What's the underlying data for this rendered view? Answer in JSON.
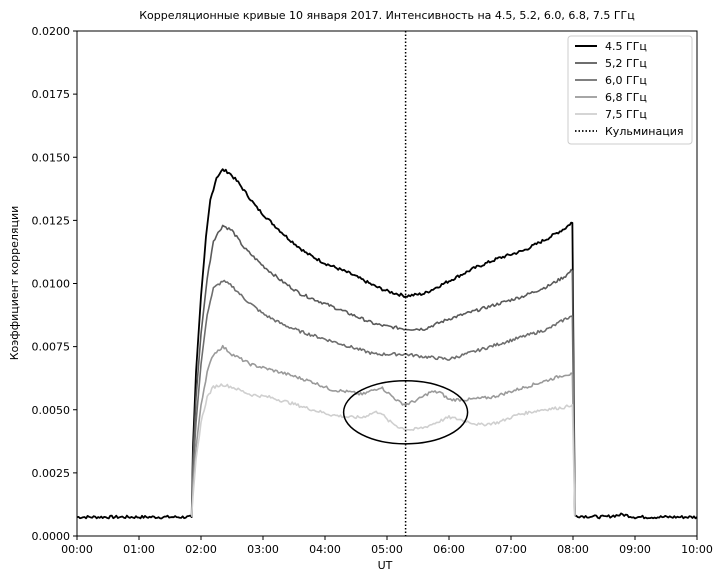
{
  "chart_data": {
    "type": "line",
    "title": "Корреляционные кривые 10 января 2017. Интенсивность на 4.5, 5.2, 6.0, 6.8, 7.5 ГГц",
    "xlabel": "UT",
    "ylabel": "Коэффициент корреляции",
    "xlim": [
      0,
      10
    ],
    "ylim": [
      0,
      0.02
    ],
    "x_ticks": [
      "00:00",
      "01:00",
      "02:00",
      "03:00",
      "04:00",
      "05:00",
      "06:00",
      "07:00",
      "08:00",
      "09:00",
      "10:00"
    ],
    "y_ticks": [
      "0.0000",
      "0.0025",
      "0.0050",
      "0.0075",
      "0.0100",
      "0.0125",
      "0.0150",
      "0.0175",
      "0.0200"
    ],
    "grid": false,
    "legend_position": "top-right",
    "series": [
      {
        "name": "4.5 ГГц",
        "color": "#000000",
        "x": [
          0,
          1.0,
          1.85,
          1.87,
          1.92,
          2.0,
          2.08,
          2.15,
          2.25,
          2.35,
          2.45,
          2.6,
          2.75,
          2.9,
          3.1,
          3.4,
          3.7,
          4.0,
          4.4,
          4.8,
          5.0,
          5.3,
          5.6,
          6.0,
          6.4,
          6.8,
          7.2,
          7.6,
          7.88,
          7.97,
          7.99,
          8.03,
          8.5,
          8.8,
          9.0,
          10.0
        ],
        "y": [
          0.00075,
          0.00075,
          0.00075,
          0.0035,
          0.0065,
          0.0095,
          0.0118,
          0.0133,
          0.0142,
          0.0145,
          0.0144,
          0.014,
          0.0135,
          0.013,
          0.0125,
          0.0118,
          0.0112,
          0.0108,
          0.0104,
          0.0099,
          0.0097,
          0.0095,
          0.0096,
          0.0101,
          0.0106,
          0.011,
          0.0113,
          0.0118,
          0.0122,
          0.0124,
          0.0124,
          0.0008,
          0.00075,
          0.00085,
          0.00075,
          0.00075
        ]
      },
      {
        "name": "5,2 ГГц",
        "color": "#5a5a5a",
        "x": [
          1.85,
          1.87,
          1.92,
          2.0,
          2.1,
          2.2,
          2.35,
          2.5,
          2.7,
          3.0,
          3.3,
          3.6,
          4.0,
          4.4,
          4.8,
          5.0,
          5.3,
          5.6,
          6.0,
          6.4,
          6.8,
          7.2,
          7.6,
          7.88,
          7.97,
          7.99,
          8.03
        ],
        "y": [
          0.00075,
          0.003,
          0.0055,
          0.008,
          0.0102,
          0.0117,
          0.0123,
          0.0121,
          0.0114,
          0.0107,
          0.0101,
          0.0096,
          0.0092,
          0.0088,
          0.0084,
          0.0083,
          0.0082,
          0.0082,
          0.0086,
          0.0089,
          0.0092,
          0.0095,
          0.0099,
          0.0103,
          0.0105,
          0.0105,
          0.0008
        ]
      },
      {
        "name": "6,0 ГГц",
        "color": "#6e6e6e",
        "x": [
          1.85,
          1.87,
          1.92,
          2.0,
          2.1,
          2.2,
          2.35,
          2.5,
          2.7,
          3.0,
          3.3,
          3.6,
          4.0,
          4.4,
          4.8,
          5.0,
          5.3,
          5.6,
          6.0,
          6.4,
          6.8,
          7.2,
          7.6,
          7.88,
          7.97,
          7.99,
          8.03
        ],
        "y": [
          0.00075,
          0.0025,
          0.0045,
          0.0068,
          0.0088,
          0.0098,
          0.0101,
          0.0099,
          0.0094,
          0.0088,
          0.0084,
          0.0081,
          0.0078,
          0.0075,
          0.0072,
          0.0072,
          0.0072,
          0.0071,
          0.007,
          0.0073,
          0.0076,
          0.0079,
          0.0082,
          0.0086,
          0.0087,
          0.0087,
          0.0008
        ]
      },
      {
        "name": "6,8 ГГц",
        "color": "#9a9a9a",
        "x": [
          1.85,
          1.87,
          1.92,
          2.0,
          2.1,
          2.2,
          2.35,
          2.5,
          2.8,
          3.1,
          3.4,
          3.8,
          4.1,
          4.4,
          4.6,
          4.8,
          4.9,
          5.0,
          5.2,
          5.3,
          5.5,
          5.7,
          5.85,
          6.0,
          6.3,
          6.7,
          7.1,
          7.5,
          7.88,
          7.97,
          7.99,
          8.03
        ],
        "y": [
          0.00075,
          0.002,
          0.0035,
          0.0052,
          0.0065,
          0.0072,
          0.0075,
          0.0072,
          0.0068,
          0.0066,
          0.0064,
          0.0061,
          0.0058,
          0.0057,
          0.0056,
          0.0058,
          0.0059,
          0.0057,
          0.0053,
          0.0052,
          0.0054,
          0.0057,
          0.0057,
          0.0054,
          0.0054,
          0.0055,
          0.0058,
          0.0061,
          0.0064,
          0.0064,
          0.0064,
          0.0008
        ]
      },
      {
        "name": "7,5 ГГц",
        "color": "#cfcfcf",
        "x": [
          1.85,
          1.87,
          1.92,
          2.0,
          2.1,
          2.2,
          2.35,
          2.5,
          2.8,
          3.1,
          3.4,
          3.8,
          4.1,
          4.4,
          4.6,
          4.8,
          4.9,
          5.0,
          5.2,
          5.4,
          5.6,
          5.8,
          6.0,
          6.2,
          6.5,
          6.8,
          7.1,
          7.5,
          7.88,
          7.97,
          7.99,
          8.03
        ],
        "y": [
          0.00075,
          0.0015,
          0.003,
          0.0045,
          0.0055,
          0.0059,
          0.006,
          0.0059,
          0.0056,
          0.0055,
          0.0053,
          0.005,
          0.0048,
          0.0047,
          0.0047,
          0.0049,
          0.0049,
          0.0046,
          0.0043,
          0.0042,
          0.0043,
          0.0045,
          0.0047,
          0.0046,
          0.0044,
          0.0045,
          0.0048,
          0.005,
          0.0051,
          0.0052,
          0.0052,
          0.0008
        ]
      }
    ],
    "culmination": {
      "name": "Кульминация",
      "x": 5.3
    },
    "annotation": {
      "type": "ellipse",
      "cx": 5.3,
      "cy": 0.0049,
      "rx": 1.0,
      "ry": 0.00125
    }
  }
}
